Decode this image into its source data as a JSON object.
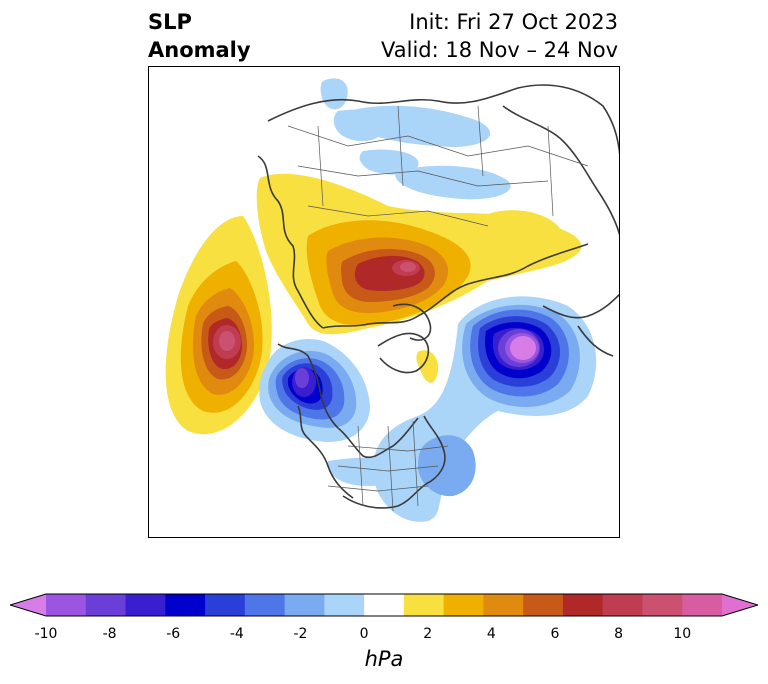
{
  "title": {
    "left_line1": "SLP",
    "left_line2": "Anomaly",
    "right_line1": "Init: Fri 27 Oct 2023",
    "right_line2": "Valid: 18 Nov – 24 Nov"
  },
  "colorbar": {
    "unit": "hPa",
    "tick_labels": [
      "-10",
      "-8",
      "-6",
      "-4",
      "-2",
      "0",
      "2",
      "4",
      "6",
      "8",
      "10"
    ],
    "colors": [
      "#d87ce8",
      "#9b55e0",
      "#6a3fd8",
      "#3a1fd0",
      "#0000cc",
      "#2a3fd8",
      "#4f76e8",
      "#7aaaf0",
      "#aad4f8",
      "#ffffff",
      "#f8e040",
      "#f0b000",
      "#e08a10",
      "#c85a18",
      "#b02828",
      "#c03c50",
      "#cc5070",
      "#d85ca0",
      "#e070d0"
    ],
    "extend": "both"
  },
  "map": {
    "projection": "polar-stereographic",
    "anomaly_features": [
      {
        "name": "north-pacific-high",
        "sign": "positive",
        "peak": 8
      },
      {
        "name": "siberian-high",
        "sign": "positive",
        "peak": 8
      },
      {
        "name": "gulf-of-alaska-low",
        "sign": "negative",
        "peak": -8
      },
      {
        "name": "north-atlantic-low",
        "sign": "negative",
        "peak": -10
      },
      {
        "name": "eastern-us-low",
        "sign": "negative",
        "peak": -4
      }
    ]
  }
}
